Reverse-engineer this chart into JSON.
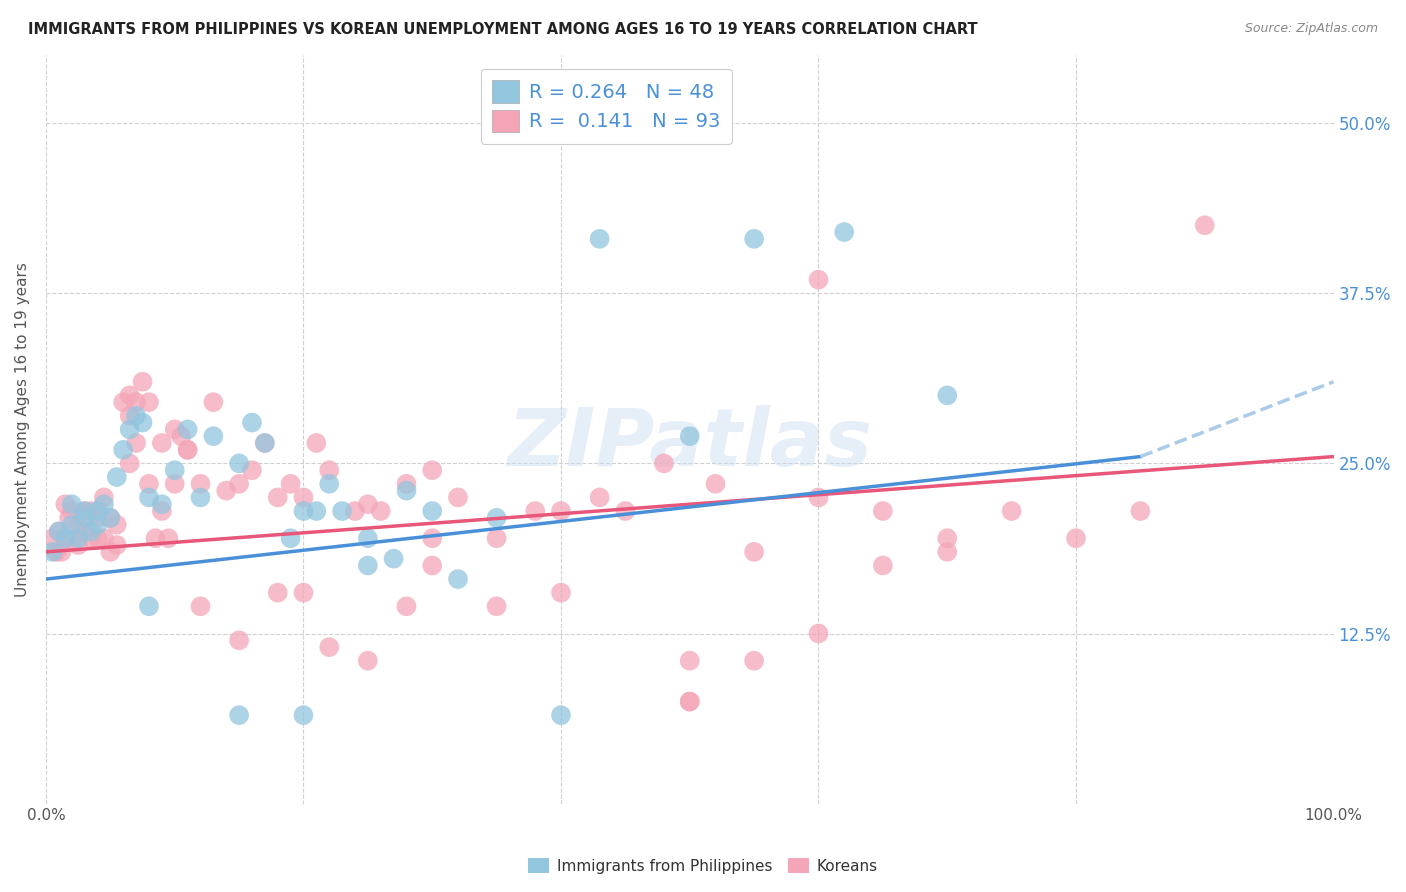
{
  "title": "IMMIGRANTS FROM PHILIPPINES VS KOREAN UNEMPLOYMENT AMONG AGES 16 TO 19 YEARS CORRELATION CHART",
  "source": "Source: ZipAtlas.com",
  "ylabel": "Unemployment Among Ages 16 to 19 years",
  "xlim": [
    0,
    1.0
  ],
  "ylim": [
    0,
    0.55
  ],
  "xticks": [
    0.0,
    0.2,
    0.4,
    0.6,
    0.8,
    1.0
  ],
  "xticklabels": [
    "0.0%",
    "",
    "",
    "",
    "",
    "100.0%"
  ],
  "yticks": [
    0.0,
    0.125,
    0.25,
    0.375,
    0.5
  ],
  "yticklabels_right": [
    "",
    "12.5%",
    "25.0%",
    "37.5%",
    "50.0%"
  ],
  "philippines_R": 0.264,
  "philippines_N": 48,
  "korean_R": 0.141,
  "korean_N": 93,
  "philippines_color": "#92c5de",
  "korean_color": "#f4a6b8",
  "trendline_philippines_color": "#4a90d9",
  "trendline_korean_color": "#e8567a",
  "trendline_dashed_color": "#aacce8",
  "watermark": "ZIPatlas",
  "background_color": "#ffffff",
  "grid_color": "#d0d0d0",
  "philippines_x": [
    0.005,
    0.01,
    0.015,
    0.02,
    0.02,
    0.025,
    0.03,
    0.03,
    0.035,
    0.04,
    0.04,
    0.045,
    0.05,
    0.055,
    0.06,
    0.065,
    0.07,
    0.075,
    0.08,
    0.09,
    0.1,
    0.11,
    0.12,
    0.13,
    0.15,
    0.16,
    0.17,
    0.19,
    0.2,
    0.21,
    0.22,
    0.23,
    0.25,
    0.27,
    0.28,
    0.3,
    0.32,
    0.35,
    0.4,
    0.43,
    0.5,
    0.55,
    0.62,
    0.7,
    0.08,
    0.15,
    0.2,
    0.25
  ],
  "philippines_y": [
    0.185,
    0.2,
    0.195,
    0.205,
    0.22,
    0.195,
    0.215,
    0.21,
    0.2,
    0.215,
    0.205,
    0.22,
    0.21,
    0.24,
    0.26,
    0.275,
    0.285,
    0.28,
    0.225,
    0.22,
    0.245,
    0.275,
    0.225,
    0.27,
    0.25,
    0.28,
    0.265,
    0.195,
    0.215,
    0.215,
    0.235,
    0.215,
    0.195,
    0.18,
    0.23,
    0.215,
    0.165,
    0.21,
    0.065,
    0.415,
    0.27,
    0.415,
    0.42,
    0.3,
    0.145,
    0.065,
    0.065,
    0.175
  ],
  "korean_x": [
    0.005,
    0.008,
    0.01,
    0.012,
    0.015,
    0.015,
    0.018,
    0.02,
    0.02,
    0.025,
    0.025,
    0.03,
    0.03,
    0.035,
    0.035,
    0.04,
    0.04,
    0.04,
    0.045,
    0.045,
    0.05,
    0.05,
    0.055,
    0.055,
    0.06,
    0.065,
    0.065,
    0.07,
    0.075,
    0.08,
    0.085,
    0.09,
    0.095,
    0.1,
    0.105,
    0.11,
    0.12,
    0.13,
    0.14,
    0.15,
    0.16,
    0.17,
    0.18,
    0.19,
    0.2,
    0.21,
    0.22,
    0.24,
    0.25,
    0.26,
    0.28,
    0.3,
    0.32,
    0.35,
    0.38,
    0.4,
    0.43,
    0.45,
    0.48,
    0.5,
    0.5,
    0.52,
    0.55,
    0.6,
    0.65,
    0.7,
    0.75,
    0.8,
    0.85,
    0.9,
    0.6,
    0.65,
    0.7,
    0.28,
    0.3,
    0.35,
    0.12,
    0.15,
    0.22,
    0.25,
    0.18,
    0.2,
    0.3,
    0.4,
    0.5,
    0.55,
    0.6,
    0.065,
    0.07,
    0.08,
    0.09,
    0.1,
    0.11
  ],
  "korean_y": [
    0.195,
    0.185,
    0.2,
    0.185,
    0.195,
    0.22,
    0.21,
    0.195,
    0.215,
    0.19,
    0.205,
    0.215,
    0.2,
    0.195,
    0.215,
    0.195,
    0.21,
    0.215,
    0.195,
    0.225,
    0.21,
    0.185,
    0.205,
    0.19,
    0.295,
    0.285,
    0.25,
    0.295,
    0.31,
    0.235,
    0.195,
    0.215,
    0.195,
    0.235,
    0.27,
    0.26,
    0.235,
    0.295,
    0.23,
    0.235,
    0.245,
    0.265,
    0.225,
    0.235,
    0.225,
    0.265,
    0.245,
    0.215,
    0.22,
    0.215,
    0.235,
    0.245,
    0.225,
    0.195,
    0.215,
    0.215,
    0.225,
    0.215,
    0.25,
    0.075,
    0.075,
    0.235,
    0.185,
    0.225,
    0.175,
    0.185,
    0.215,
    0.195,
    0.215,
    0.425,
    0.385,
    0.215,
    0.195,
    0.145,
    0.195,
    0.145,
    0.145,
    0.12,
    0.115,
    0.105,
    0.155,
    0.155,
    0.175,
    0.155,
    0.105,
    0.105,
    0.125,
    0.3,
    0.265,
    0.295,
    0.265,
    0.275,
    0.26
  ],
  "trendline_phil_x0": 0.0,
  "trendline_phil_y0": 0.165,
  "trendline_phil_x1": 0.85,
  "trendline_phil_y1": 0.255,
  "trendline_phil_xdash_end": 1.0,
  "trendline_phil_ydash_end": 0.31,
  "trendline_kor_x0": 0.0,
  "trendline_kor_y0": 0.185,
  "trendline_kor_x1": 1.0,
  "trendline_kor_y1": 0.255
}
